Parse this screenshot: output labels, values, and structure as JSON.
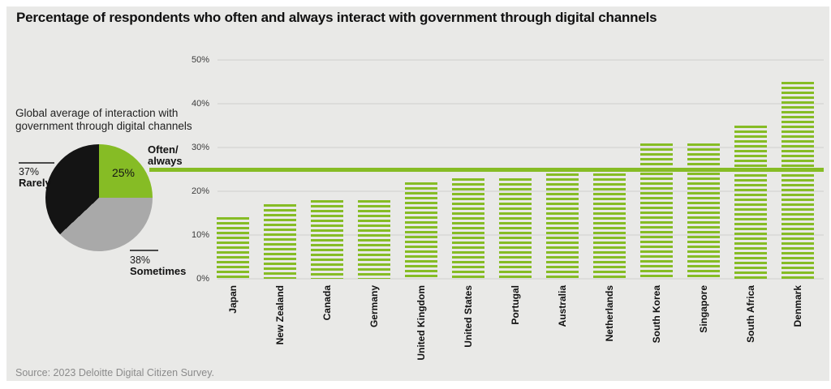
{
  "title": "Percentage of respondents who often and always interact with government through digital channels",
  "source": "Source: 2023 Deloitte Digital Citizen Survey.",
  "colors": {
    "green": "#86bc25",
    "pie_black": "#141414",
    "pie_gray": "#a9a9a9",
    "panel_bg": "#e9e9e7"
  },
  "pie": {
    "caption": "Global average of interaction with government through digital channels",
    "often_always": {
      "label_lines": [
        "Often/",
        "always"
      ],
      "value_label": "25%"
    },
    "rarely": {
      "value_label": "37%",
      "label": "Rarely"
    },
    "sometimes": {
      "value_label": "38%",
      "label": "Sometimes"
    }
  },
  "chart_data": [
    {
      "type": "pie",
      "title": "Global average of interaction with government through digital channels",
      "labels": [
        "Often/always",
        "Sometimes",
        "Rarely"
      ],
      "values": [
        25,
        38,
        37
      ],
      "colors": [
        "#86bc25",
        "#a9a9a9",
        "#141414"
      ],
      "start_angle_deg": 0,
      "direction": "clockwise"
    },
    {
      "type": "bar",
      "title": "Percentage of respondents who often and always interact with government through digital channels",
      "categories": [
        "Japan",
        "New Zealand",
        "Canada",
        "Germany",
        "United Kingdom",
        "United States",
        "Portugal",
        "Australia",
        "Netherlands",
        "South Korea",
        "Singapore",
        "South Africa",
        "Denmark"
      ],
      "values": [
        14,
        17,
        18,
        18,
        22,
        23,
        23,
        24,
        24,
        31,
        31,
        35,
        45
      ],
      "xlabel": "",
      "ylabel": "",
      "ylim": [
        0,
        50
      ],
      "yticks": [
        {
          "value": 0,
          "label": "0%"
        },
        {
          "value": 10,
          "label": "10%"
        },
        {
          "value": 20,
          "label": "20%"
        },
        {
          "value": 30,
          "label": "30%"
        },
        {
          "value": 40,
          "label": "40%"
        },
        {
          "value": 50,
          "label": "50%"
        }
      ],
      "grid": true,
      "bar_style": "horizontal-stripes",
      "reference_line": {
        "value": 25,
        "meaning": "global average"
      }
    }
  ]
}
